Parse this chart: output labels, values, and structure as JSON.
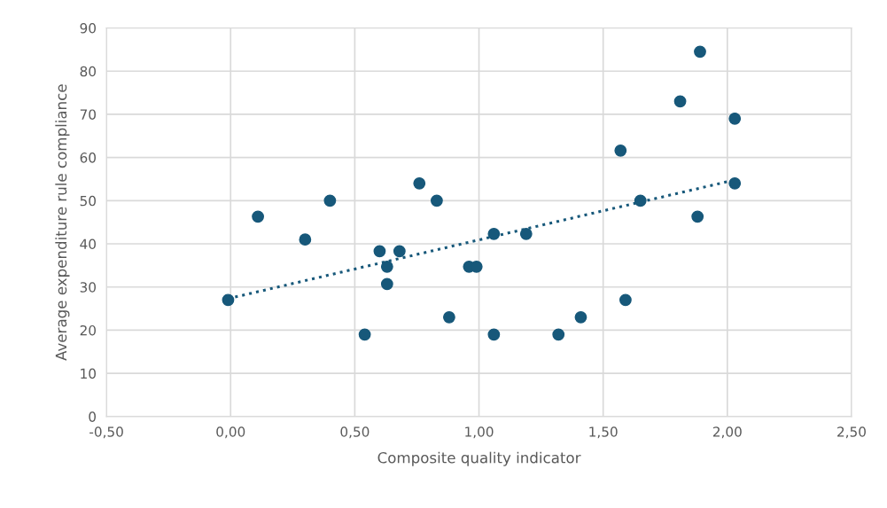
{
  "chart_data": {
    "type": "scatter",
    "xlabel": "Composite quality indicator",
    "ylabel": "Average expenditure rule compliance",
    "series": [
      {
        "color": "#17587a",
        "marker": "circle",
        "x": [
          -0.01,
          0.11,
          0.3,
          0.4,
          0.54,
          0.6,
          0.63,
          0.63,
          0.68,
          0.76,
          0.83,
          0.88,
          0.96,
          0.99,
          1.06,
          1.06,
          1.19,
          1.32,
          1.41,
          1.57,
          1.59,
          1.65,
          1.81,
          1.88,
          1.89,
          2.03,
          2.03
        ],
        "values": [
          27,
          46.3,
          41,
          50,
          19,
          38.3,
          34.7,
          30.7,
          38.3,
          54,
          50,
          23,
          34.7,
          34.7,
          42.3,
          19,
          42.3,
          19,
          23,
          61.6,
          27,
          50,
          73,
          46.3,
          84.5,
          69,
          54
        ]
      },
      {
        "type": "line",
        "color": "#17587a",
        "line_style": "dotted",
        "x": [
          -0.01,
          2.03
        ],
        "values": [
          27.3,
          54.8
        ]
      }
    ],
    "xlim": [
      -0.5,
      2.5
    ],
    "xticks": [
      {
        "value": -0.5,
        "label": "-0,50"
      },
      {
        "value": 0,
        "label": "0,00"
      },
      {
        "value": 0.5,
        "label": "0,50"
      },
      {
        "value": 1,
        "label": "1,00"
      },
      {
        "value": 1.5,
        "label": "1,50"
      },
      {
        "value": 2,
        "label": "2,00"
      },
      {
        "value": 2.5,
        "label": "2,50"
      }
    ],
    "ylim": [
      0,
      90
    ],
    "yticks": [
      0,
      10,
      20,
      30,
      40,
      50,
      60,
      70,
      80,
      90
    ],
    "grid": true,
    "legend": false
  }
}
